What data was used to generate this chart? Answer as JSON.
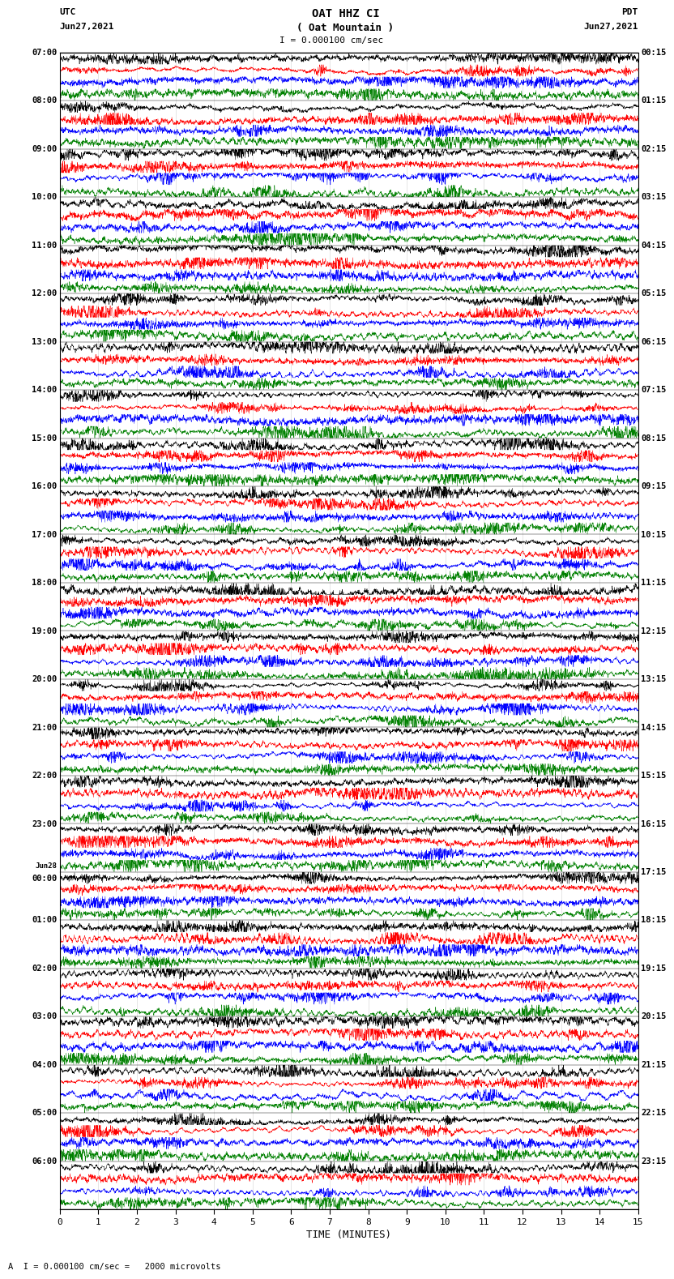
{
  "title_line1": "OAT HHZ CI",
  "title_line2": "( Oat Mountain )",
  "scale_label": "I = 0.000100 cm/sec",
  "footer_label": "A  I = 0.000100 cm/sec =   2000 microvolts",
  "xlabel": "TIME (MINUTES)",
  "utc_label": "UTC",
  "utc_date": "Jun27,2021",
  "pdt_label": "PDT",
  "pdt_date": "Jun27,2021",
  "left_times_utc": [
    "07:00",
    "08:00",
    "09:00",
    "10:00",
    "11:00",
    "12:00",
    "13:00",
    "14:00",
    "15:00",
    "16:00",
    "17:00",
    "18:00",
    "19:00",
    "20:00",
    "21:00",
    "22:00",
    "23:00",
    "Jun28\n00:00",
    "01:00",
    "02:00",
    "03:00",
    "04:00",
    "05:00",
    "06:00"
  ],
  "right_times_pdt": [
    "00:15",
    "01:15",
    "02:15",
    "03:15",
    "04:15",
    "05:15",
    "06:15",
    "07:15",
    "08:15",
    "09:15",
    "10:15",
    "11:15",
    "12:15",
    "13:15",
    "14:15",
    "15:15",
    "16:15",
    "17:15",
    "18:15",
    "19:15",
    "20:15",
    "21:15",
    "22:15",
    "23:15"
  ],
  "num_rows": 24,
  "traces_per_row": 4,
  "colors": [
    "black",
    "red",
    "blue",
    "green"
  ],
  "bg_color": "white",
  "xlim": [
    0,
    15
  ],
  "xticks": [
    0,
    1,
    2,
    3,
    4,
    5,
    6,
    7,
    8,
    9,
    10,
    11,
    12,
    13,
    14,
    15
  ],
  "seed": 42
}
